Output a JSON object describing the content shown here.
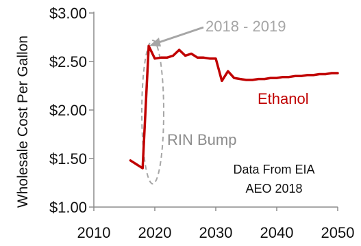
{
  "chart_data": {
    "type": "line",
    "title": "",
    "xlabel": "",
    "ylabel": "Wholesale Cost Per Gallon",
    "xlim": [
      2010,
      2050
    ],
    "ylim": [
      1.0,
      3.0
    ],
    "x_ticks": [
      "2010",
      "2020",
      "2030",
      "2040",
      "2050"
    ],
    "y_ticks": [
      "$3.00",
      "$2.50",
      "$2.00",
      "$1.50",
      "$1.00"
    ],
    "grid": false,
    "series": [
      {
        "name": "Ethanol",
        "color": "#c00000",
        "x": [
          2016,
          2017,
          2018,
          2019,
          2020,
          2021,
          2022,
          2023,
          2024,
          2025,
          2026,
          2027,
          2028,
          2029,
          2030,
          2031,
          2032,
          2033,
          2034,
          2035,
          2036,
          2037,
          2038,
          2039,
          2040,
          2041,
          2042,
          2043,
          2044,
          2045,
          2046,
          2047,
          2048,
          2049,
          2050
        ],
        "y": [
          1.48,
          1.44,
          1.4,
          2.66,
          2.53,
          2.54,
          2.54,
          2.56,
          2.62,
          2.56,
          2.58,
          2.54,
          2.54,
          2.53,
          2.53,
          2.3,
          2.4,
          2.33,
          2.32,
          2.31,
          2.31,
          2.32,
          2.32,
          2.33,
          2.33,
          2.34,
          2.34,
          2.35,
          2.35,
          2.36,
          2.36,
          2.37,
          2.37,
          2.38,
          2.38
        ]
      }
    ],
    "annotations": [
      {
        "text": "2018 - 2019",
        "color": "#a6a6a6"
      },
      {
        "text": "RIN Bump",
        "color": "#8c8c8c"
      },
      {
        "text": "Data From EIA",
        "color": "#111111"
      },
      {
        "text": "AEO 2018",
        "color": "#111111"
      }
    ]
  }
}
